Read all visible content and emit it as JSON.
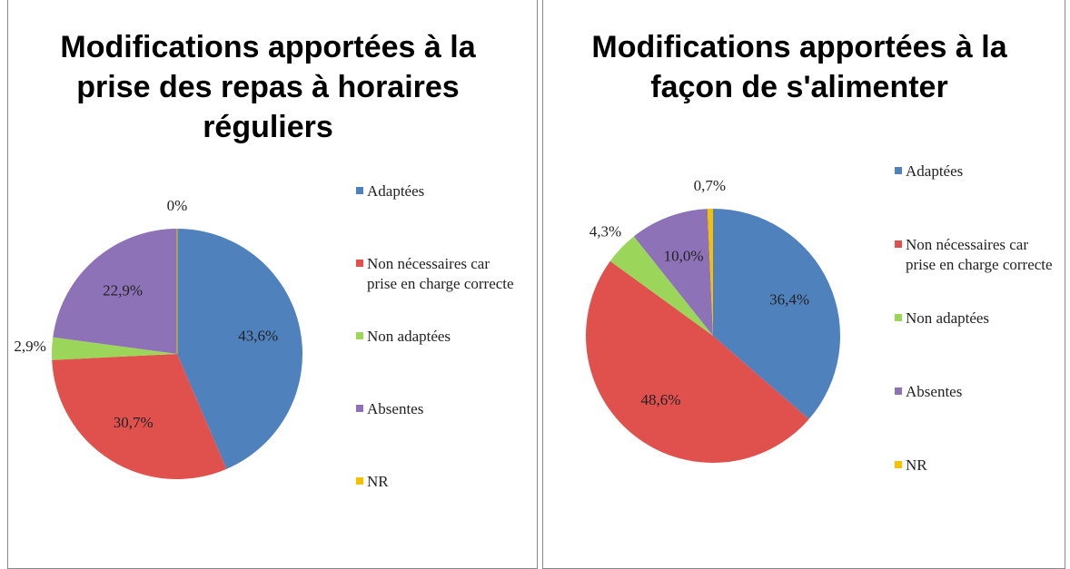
{
  "chart_data": [
    {
      "type": "pie",
      "title": "Modifications apportées à la prise des repas à horaires réguliers",
      "categories": [
        "Adaptées",
        "Non nécessaires car prise en charge correcte",
        "Non adaptées",
        "Absentes",
        "NR"
      ],
      "values": [
        43.6,
        30.7,
        2.9,
        22.9,
        0
      ],
      "value_labels": [
        "43,6%",
        "30,7%",
        "2,9%",
        "22,9%",
        "0%"
      ],
      "colors": [
        "#4f81bd",
        "#e0504d",
        "#9bd65a",
        "#8e72b8",
        "#f5c000"
      ],
      "legend": "right"
    },
    {
      "type": "pie",
      "title": "Modifications apportées à la façon de s'alimenter",
      "categories": [
        "Adaptées",
        "Non nécessaires car prise en charge correcte",
        "Non adaptées",
        "Absentes",
        "NR"
      ],
      "values": [
        36.4,
        48.6,
        4.3,
        10.0,
        0.7
      ],
      "value_labels": [
        "36,4%",
        "48,6%",
        "4,3%",
        "10,0%",
        "0,7%"
      ],
      "colors": [
        "#4f81bd",
        "#e0504d",
        "#9bd65a",
        "#8e72b8",
        "#f5c000"
      ],
      "legend": "right"
    }
  ]
}
